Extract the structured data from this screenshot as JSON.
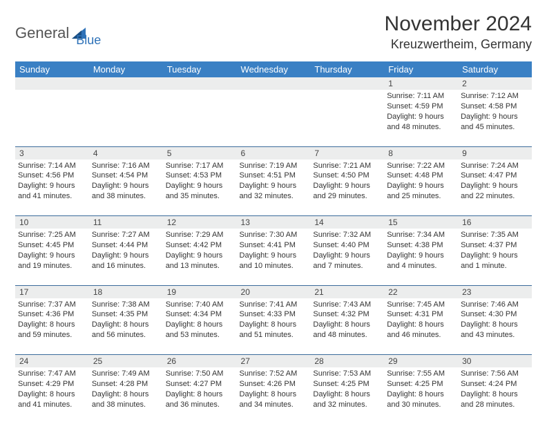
{
  "logo": {
    "text1": "General",
    "text2": "Blue"
  },
  "title": "November 2024",
  "location": "Kreuzwertheim, Germany",
  "colors": {
    "header_bg": "#3a80c4",
    "header_fg": "#ffffff",
    "daynum_bg": "#eceded",
    "divider": "#3a6a9a",
    "logo_accent": "#2e72b8"
  },
  "weekdays": [
    "Sunday",
    "Monday",
    "Tuesday",
    "Wednesday",
    "Thursday",
    "Friday",
    "Saturday"
  ],
  "weeks": [
    [
      null,
      null,
      null,
      null,
      null,
      {
        "n": "1",
        "sr": "Sunrise: 7:11 AM",
        "ss": "Sunset: 4:59 PM",
        "d1": "Daylight: 9 hours",
        "d2": "and 48 minutes."
      },
      {
        "n": "2",
        "sr": "Sunrise: 7:12 AM",
        "ss": "Sunset: 4:58 PM",
        "d1": "Daylight: 9 hours",
        "d2": "and 45 minutes."
      }
    ],
    [
      {
        "n": "3",
        "sr": "Sunrise: 7:14 AM",
        "ss": "Sunset: 4:56 PM",
        "d1": "Daylight: 9 hours",
        "d2": "and 41 minutes."
      },
      {
        "n": "4",
        "sr": "Sunrise: 7:16 AM",
        "ss": "Sunset: 4:54 PM",
        "d1": "Daylight: 9 hours",
        "d2": "and 38 minutes."
      },
      {
        "n": "5",
        "sr": "Sunrise: 7:17 AM",
        "ss": "Sunset: 4:53 PM",
        "d1": "Daylight: 9 hours",
        "d2": "and 35 minutes."
      },
      {
        "n": "6",
        "sr": "Sunrise: 7:19 AM",
        "ss": "Sunset: 4:51 PM",
        "d1": "Daylight: 9 hours",
        "d2": "and 32 minutes."
      },
      {
        "n": "7",
        "sr": "Sunrise: 7:21 AM",
        "ss": "Sunset: 4:50 PM",
        "d1": "Daylight: 9 hours",
        "d2": "and 29 minutes."
      },
      {
        "n": "8",
        "sr": "Sunrise: 7:22 AM",
        "ss": "Sunset: 4:48 PM",
        "d1": "Daylight: 9 hours",
        "d2": "and 25 minutes."
      },
      {
        "n": "9",
        "sr": "Sunrise: 7:24 AM",
        "ss": "Sunset: 4:47 PM",
        "d1": "Daylight: 9 hours",
        "d2": "and 22 minutes."
      }
    ],
    [
      {
        "n": "10",
        "sr": "Sunrise: 7:25 AM",
        "ss": "Sunset: 4:45 PM",
        "d1": "Daylight: 9 hours",
        "d2": "and 19 minutes."
      },
      {
        "n": "11",
        "sr": "Sunrise: 7:27 AM",
        "ss": "Sunset: 4:44 PM",
        "d1": "Daylight: 9 hours",
        "d2": "and 16 minutes."
      },
      {
        "n": "12",
        "sr": "Sunrise: 7:29 AM",
        "ss": "Sunset: 4:42 PM",
        "d1": "Daylight: 9 hours",
        "d2": "and 13 minutes."
      },
      {
        "n": "13",
        "sr": "Sunrise: 7:30 AM",
        "ss": "Sunset: 4:41 PM",
        "d1": "Daylight: 9 hours",
        "d2": "and 10 minutes."
      },
      {
        "n": "14",
        "sr": "Sunrise: 7:32 AM",
        "ss": "Sunset: 4:40 PM",
        "d1": "Daylight: 9 hours",
        "d2": "and 7 minutes."
      },
      {
        "n": "15",
        "sr": "Sunrise: 7:34 AM",
        "ss": "Sunset: 4:38 PM",
        "d1": "Daylight: 9 hours",
        "d2": "and 4 minutes."
      },
      {
        "n": "16",
        "sr": "Sunrise: 7:35 AM",
        "ss": "Sunset: 4:37 PM",
        "d1": "Daylight: 9 hours",
        "d2": "and 1 minute."
      }
    ],
    [
      {
        "n": "17",
        "sr": "Sunrise: 7:37 AM",
        "ss": "Sunset: 4:36 PM",
        "d1": "Daylight: 8 hours",
        "d2": "and 59 minutes."
      },
      {
        "n": "18",
        "sr": "Sunrise: 7:38 AM",
        "ss": "Sunset: 4:35 PM",
        "d1": "Daylight: 8 hours",
        "d2": "and 56 minutes."
      },
      {
        "n": "19",
        "sr": "Sunrise: 7:40 AM",
        "ss": "Sunset: 4:34 PM",
        "d1": "Daylight: 8 hours",
        "d2": "and 53 minutes."
      },
      {
        "n": "20",
        "sr": "Sunrise: 7:41 AM",
        "ss": "Sunset: 4:33 PM",
        "d1": "Daylight: 8 hours",
        "d2": "and 51 minutes."
      },
      {
        "n": "21",
        "sr": "Sunrise: 7:43 AM",
        "ss": "Sunset: 4:32 PM",
        "d1": "Daylight: 8 hours",
        "d2": "and 48 minutes."
      },
      {
        "n": "22",
        "sr": "Sunrise: 7:45 AM",
        "ss": "Sunset: 4:31 PM",
        "d1": "Daylight: 8 hours",
        "d2": "and 46 minutes."
      },
      {
        "n": "23",
        "sr": "Sunrise: 7:46 AM",
        "ss": "Sunset: 4:30 PM",
        "d1": "Daylight: 8 hours",
        "d2": "and 43 minutes."
      }
    ],
    [
      {
        "n": "24",
        "sr": "Sunrise: 7:47 AM",
        "ss": "Sunset: 4:29 PM",
        "d1": "Daylight: 8 hours",
        "d2": "and 41 minutes."
      },
      {
        "n": "25",
        "sr": "Sunrise: 7:49 AM",
        "ss": "Sunset: 4:28 PM",
        "d1": "Daylight: 8 hours",
        "d2": "and 38 minutes."
      },
      {
        "n": "26",
        "sr": "Sunrise: 7:50 AM",
        "ss": "Sunset: 4:27 PM",
        "d1": "Daylight: 8 hours",
        "d2": "and 36 minutes."
      },
      {
        "n": "27",
        "sr": "Sunrise: 7:52 AM",
        "ss": "Sunset: 4:26 PM",
        "d1": "Daylight: 8 hours",
        "d2": "and 34 minutes."
      },
      {
        "n": "28",
        "sr": "Sunrise: 7:53 AM",
        "ss": "Sunset: 4:25 PM",
        "d1": "Daylight: 8 hours",
        "d2": "and 32 minutes."
      },
      {
        "n": "29",
        "sr": "Sunrise: 7:55 AM",
        "ss": "Sunset: 4:25 PM",
        "d1": "Daylight: 8 hours",
        "d2": "and 30 minutes."
      },
      {
        "n": "30",
        "sr": "Sunrise: 7:56 AM",
        "ss": "Sunset: 4:24 PM",
        "d1": "Daylight: 8 hours",
        "d2": "and 28 minutes."
      }
    ]
  ]
}
